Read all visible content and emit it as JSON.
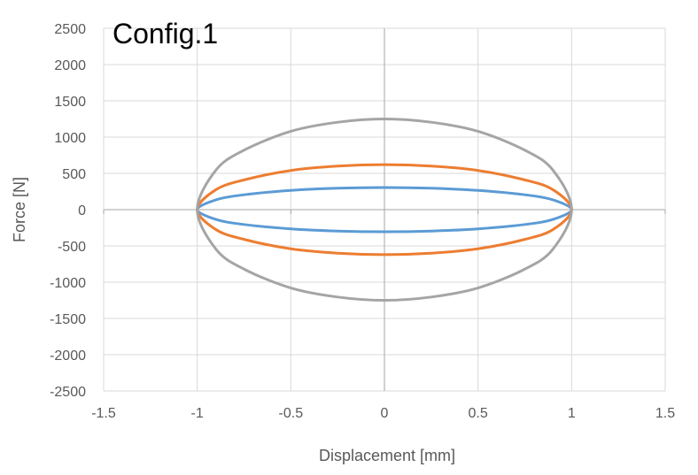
{
  "chart_data": {
    "type": "line",
    "title": "Config.1",
    "xlabel": "Displacement [mm]",
    "ylabel": "Force [N]",
    "xlim": [
      -1.5,
      1.5
    ],
    "ylim": [
      -2500,
      2500
    ],
    "x_ticks": [
      "-1.5",
      "-1",
      "-0.5",
      "0",
      "0.5",
      "1",
      "1.5"
    ],
    "y_ticks": [
      "2500",
      "2000",
      "1500",
      "1000",
      "500",
      "0",
      "-500",
      "-1000",
      "-1500",
      "-2000",
      "-2500"
    ],
    "grid": true,
    "legend": "none",
    "series": [
      {
        "color": "#5b9bd5",
        "x": [
          1,
          0.9,
          0.75,
          0.5,
          0.25,
          0,
          -0.25,
          -0.5,
          -0.75,
          -0.9,
          -1,
          -0.9,
          -0.75,
          -0.5,
          -0.25,
          0,
          0.25,
          0.5,
          0.75,
          0.9,
          1
        ],
        "y": [
          0,
          135,
          205,
          265,
          295,
          305,
          295,
          265,
          205,
          135,
          0,
          -135,
          -205,
          -265,
          -295,
          -305,
          -295,
          -265,
          -205,
          -135,
          0
        ]
      },
      {
        "color": "#ed7d31",
        "x": [
          1,
          0.9,
          0.75,
          0.5,
          0.25,
          0,
          -0.25,
          -0.5,
          -0.75,
          -0.9,
          -1,
          -0.9,
          -0.75,
          -0.5,
          -0.25,
          0,
          0.25,
          0.5,
          0.75,
          0.9,
          1
        ],
        "y": [
          0,
          275,
          410,
          540,
          600,
          620,
          600,
          540,
          410,
          275,
          0,
          -275,
          -410,
          -540,
          -600,
          -620,
          -600,
          -540,
          -410,
          -275,
          0
        ]
      },
      {
        "color": "#a5a5a5",
        "x": [
          1,
          0.9,
          0.75,
          0.5,
          0.25,
          0,
          -0.25,
          -0.5,
          -0.75,
          -0.9,
          -1,
          -0.9,
          -0.75,
          -0.5,
          -0.25,
          0,
          0.25,
          0.5,
          0.75,
          0.9,
          1
        ],
        "y": [
          0,
          545,
          820,
          1080,
          1205,
          1250,
          1205,
          1080,
          820,
          545,
          0,
          -545,
          -820,
          -1080,
          -1205,
          -1250,
          -1205,
          -1080,
          -820,
          -545,
          0
        ]
      }
    ]
  }
}
